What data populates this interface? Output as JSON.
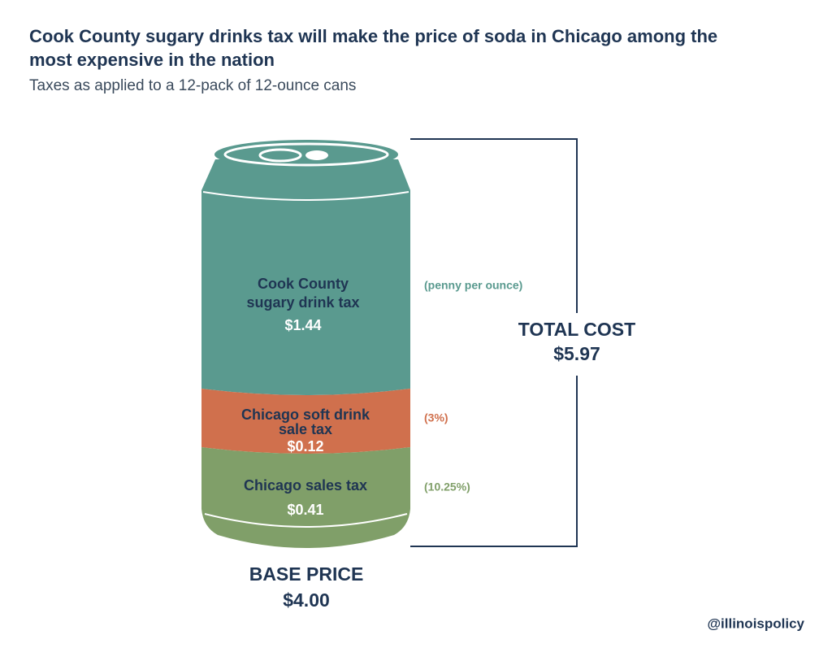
{
  "header": {
    "title_lines": [
      "Cook County sugary drinks tax will make the price of soda in Chicago among the",
      "most expensive in the nation"
    ],
    "subtitle": "Taxes as applied to a 12-pack of 12-ounce cans"
  },
  "segments": [
    {
      "label_lines": [
        "Cook County",
        "sugary drink tax"
      ],
      "amount": "$1.44",
      "note": "(penny per ounce)"
    },
    {
      "label_lines": [
        "Chicago soft drink",
        "sale tax"
      ],
      "amount": "$0.12",
      "note": "(3%)"
    },
    {
      "label_lines": [
        "Chicago sales tax"
      ],
      "amount": "$0.41",
      "note": "(10.25%)"
    }
  ],
  "base": {
    "label": "BASE PRICE",
    "amount": "$4.00"
  },
  "total": {
    "label": "TOTAL COST",
    "amount": "$5.97"
  },
  "footer": {
    "handle": "@illinoispolicy"
  }
}
